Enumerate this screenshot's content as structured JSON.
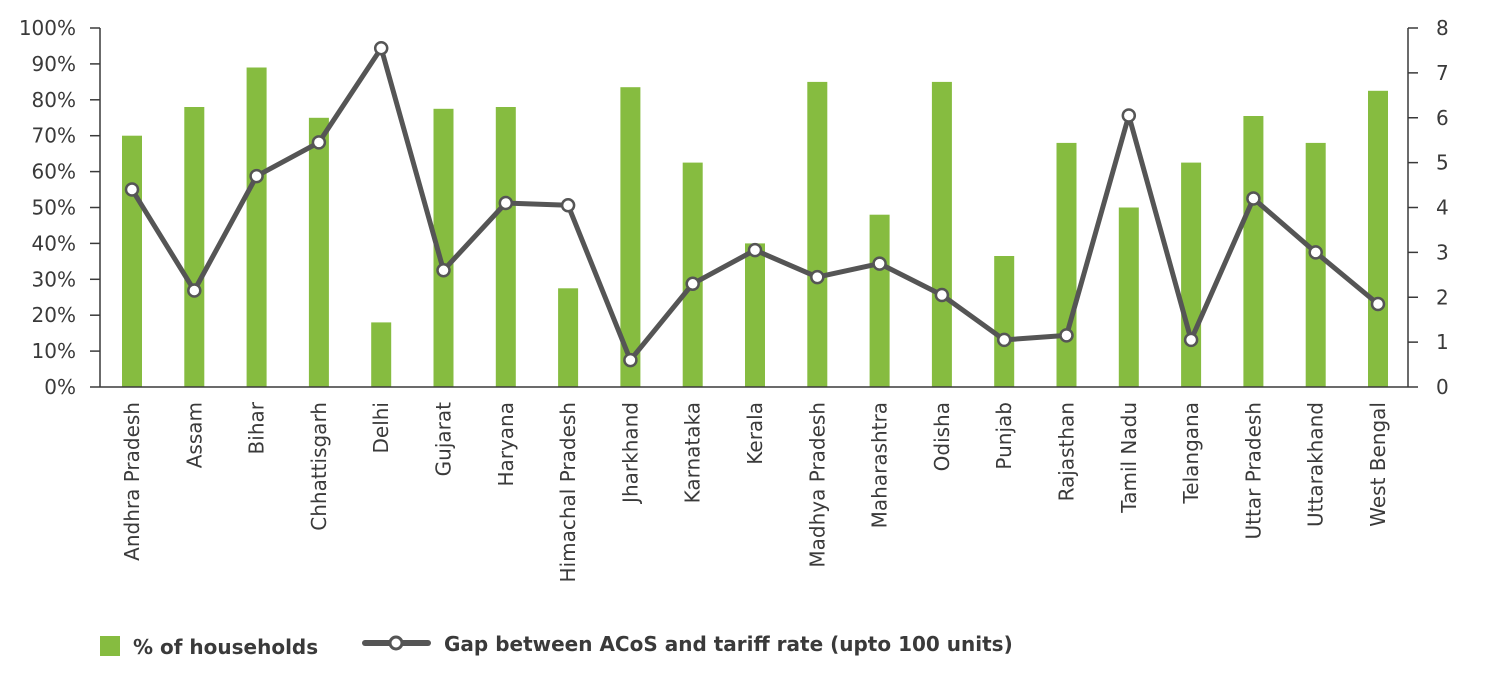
{
  "chart_data": {
    "type": "bar",
    "categories": [
      "Andhra Pradesh",
      "Assam",
      "Bihar",
      "Chhattisgarh",
      "Delhi",
      "Gujarat",
      "Haryana",
      "Himachal Pradesh",
      "Jharkhand",
      "Karnataka",
      "Kerala",
      "Madhya Pradesh",
      "Maharashtra",
      "Odisha",
      "Punjab",
      "Rajasthan",
      "Tamil Nadu",
      "Telangana",
      "Uttar Pradesh",
      "Uttarakhand",
      "West Bengal"
    ],
    "series": [
      {
        "name": "% of households",
        "type": "bar",
        "axis": "left",
        "color": "#86bc40",
        "values": [
          70,
          78,
          89,
          75,
          18,
          77.5,
          78,
          27.5,
          83.5,
          62.5,
          40,
          85,
          48,
          85,
          36.5,
          68,
          50,
          62.5,
          75.5,
          68,
          82.5
        ]
      },
      {
        "name": "Gap between ACoS and tariff rate (upto 100 units)",
        "type": "line",
        "axis": "right",
        "color": "#555555",
        "values": [
          4.4,
          2.15,
          4.7,
          5.45,
          7.55,
          2.6,
          4.1,
          4.05,
          0.6,
          2.3,
          3.05,
          2.45,
          2.75,
          2.05,
          1.05,
          1.15,
          6.05,
          1.05,
          4.2,
          3.0,
          1.85
        ]
      }
    ],
    "y_left": {
      "ylim": [
        0,
        100
      ],
      "ticks": [
        0,
        10,
        20,
        30,
        40,
        50,
        60,
        70,
        80,
        90,
        100
      ],
      "tick_labels": [
        "0%",
        "10%",
        "20%",
        "30%",
        "40%",
        "50%",
        "60%",
        "70%",
        "80%",
        "90%",
        "100%"
      ]
    },
    "y_right": {
      "ylim": [
        0,
        8
      ],
      "ticks": [
        0,
        1,
        2,
        3,
        4,
        5,
        6,
        7,
        8
      ],
      "tick_labels": [
        "0",
        "1",
        "2",
        "3",
        "4",
        "5",
        "6",
        "7",
        "8"
      ]
    },
    "title": "",
    "xlabel": "",
    "ylabel": "",
    "grid": false,
    "legend_position": "bottom-left"
  }
}
